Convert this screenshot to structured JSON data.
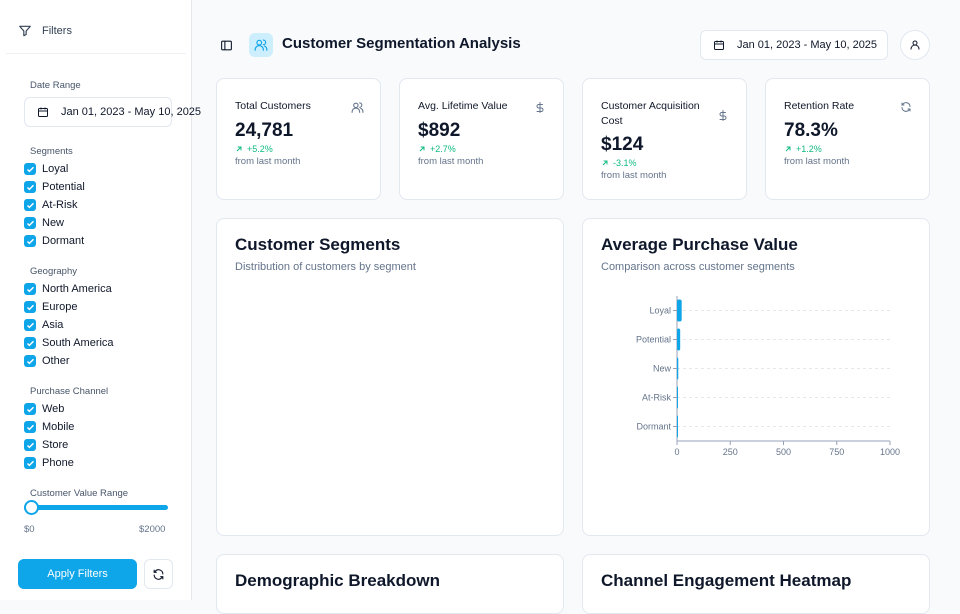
{
  "sidebar": {
    "header_label": "Filters",
    "date_range": {
      "title": "Date Range",
      "value": "Jan 01, 2023 - May 10, 2025"
    },
    "segments": {
      "title": "Segments",
      "items": [
        {
          "label": "Loyal",
          "checked": true
        },
        {
          "label": "Potential",
          "checked": true
        },
        {
          "label": "At-Risk",
          "checked": true
        },
        {
          "label": "New",
          "checked": true
        },
        {
          "label": "Dormant",
          "checked": true
        }
      ]
    },
    "geography": {
      "title": "Geography",
      "items": [
        {
          "label": "North America",
          "checked": true
        },
        {
          "label": "Europe",
          "checked": true
        },
        {
          "label": "Asia",
          "checked": true
        },
        {
          "label": "South America",
          "checked": true
        },
        {
          "label": "Other",
          "checked": true
        }
      ]
    },
    "channel": {
      "title": "Purchase Channel",
      "items": [
        {
          "label": "Web",
          "checked": true
        },
        {
          "label": "Mobile",
          "checked": true
        },
        {
          "label": "Store",
          "checked": true
        },
        {
          "label": "Phone",
          "checked": true
        }
      ]
    },
    "value_range": {
      "title": "Customer Value Range",
      "min_label": "$0",
      "max_label": "$2000",
      "selected_min": 0,
      "selected_max": 2000
    },
    "apply_label": "Apply Filters",
    "refresh_icon": "refresh-icon"
  },
  "header": {
    "title": "Customer Segmentation Analysis",
    "date_range": "Jan 01, 2023 - May 10, 2025",
    "icons": {
      "toggle": "sidebar-toggle-icon",
      "logo": "users-icon",
      "calendar": "calendar-icon",
      "user": "user-icon"
    }
  },
  "kpis": [
    {
      "title": "Total Customers",
      "value": "24,781",
      "change": "+5.2%",
      "sub": "from last month",
      "icon": "users-icon"
    },
    {
      "title": "Avg. Lifetime Value",
      "value": "$892",
      "change": "+2.7%",
      "sub": "from last month",
      "icon": "dollar-icon"
    },
    {
      "title": "Customer Acquisition Cost",
      "value": "$124",
      "change": "-3.1%",
      "sub": "from last month",
      "icon": "dollar-icon"
    },
    {
      "title": "Retention Rate",
      "value": "78.3%",
      "change": "+1.2%",
      "sub": "from last month",
      "icon": "refresh-icon"
    }
  ],
  "colors": {
    "accent": "#0ea5e9",
    "positive": "#10b981",
    "logo_bg": "#cdeefc"
  },
  "panels": {
    "segments": {
      "title": "Customer Segments",
      "subtitle": "Distribution of customers by segment"
    },
    "purchase": {
      "title": "Average Purchase Value",
      "subtitle": "Comparison across customer segments"
    },
    "demographic": {
      "title": "Demographic Breakdown",
      "subtitle": ""
    },
    "heatmap": {
      "title": "Channel Engagement Heatmap",
      "subtitle": ""
    }
  },
  "chart_data": {
    "type": "bar",
    "orientation": "horizontal",
    "categories": [
      "Loyal",
      "Potential",
      "New",
      "At-Risk",
      "Dormant"
    ],
    "values": [
      22,
      15,
      6,
      4,
      1
    ],
    "xlim": [
      0,
      1000
    ],
    "xticks": [
      "0",
      "250",
      "500",
      "750",
      "1000"
    ],
    "grid": true,
    "title": "Average Purchase Value",
    "subtitle": "Comparison across customer segments"
  }
}
